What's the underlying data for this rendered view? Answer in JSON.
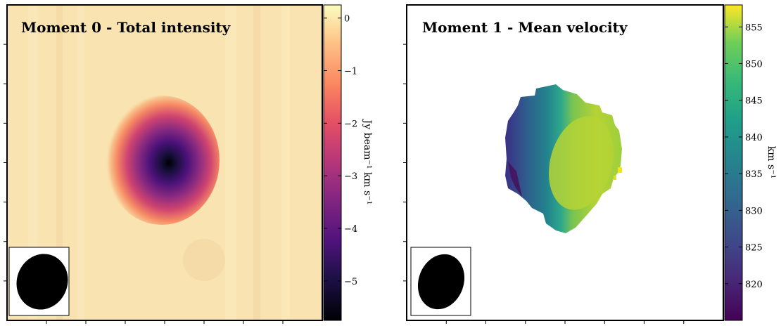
{
  "chart_data": [
    {
      "type": "heatmap",
      "title": "Moment 0 - Total intensity",
      "colormap": "magma",
      "colorbar": {
        "label": "Jy beam⁻¹ km s⁻¹",
        "range": [
          -5.75,
          0.25
        ],
        "ticks": [
          0,
          -1,
          -2,
          -3,
          -4,
          -5
        ],
        "tick_labels": [
          "0",
          "−1",
          "−2",
          "−3",
          "−4",
          "−5"
        ]
      },
      "background_value": 0,
      "peak_value": -5.7,
      "beam": "filled ellipse in a boxed inset, bottom-left"
    },
    {
      "type": "heatmap",
      "title": "Moment 1 - Mean velocity",
      "colormap": "viridis",
      "colorbar": {
        "label": "km s⁻¹",
        "range": [
          815,
          858
        ],
        "ticks": [
          820,
          825,
          830,
          835,
          840,
          845,
          850,
          855
        ],
        "tick_labels": [
          "820",
          "825",
          "830",
          "835",
          "840",
          "845",
          "850",
          "855"
        ]
      },
      "min_value": 816,
      "max_value": 853,
      "beam": "filled ellipse in a boxed inset, bottom-left"
    }
  ],
  "colors": {
    "frame": "#000000",
    "masked": "#ffffff",
    "beam": "#000000"
  }
}
